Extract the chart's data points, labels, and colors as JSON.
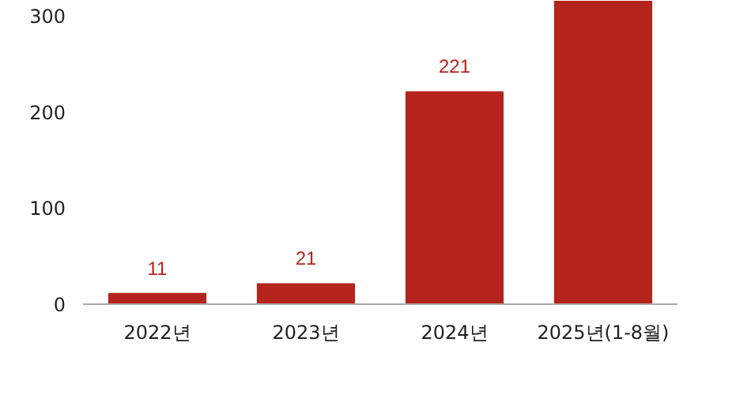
{
  "chart_data": {
    "type": "bar",
    "categories": [
      "2022년",
      "2023년",
      "2024년",
      "2025년(1-8월)"
    ],
    "values": [
      11,
      21,
      221,
      316
    ],
    "value_labels": [
      "11",
      "21",
      "221",
      null
    ],
    "color": "#b5241c",
    "ylim": [
      0,
      316
    ],
    "yticks": [
      0,
      100,
      200,
      300
    ],
    "grid": false
  }
}
